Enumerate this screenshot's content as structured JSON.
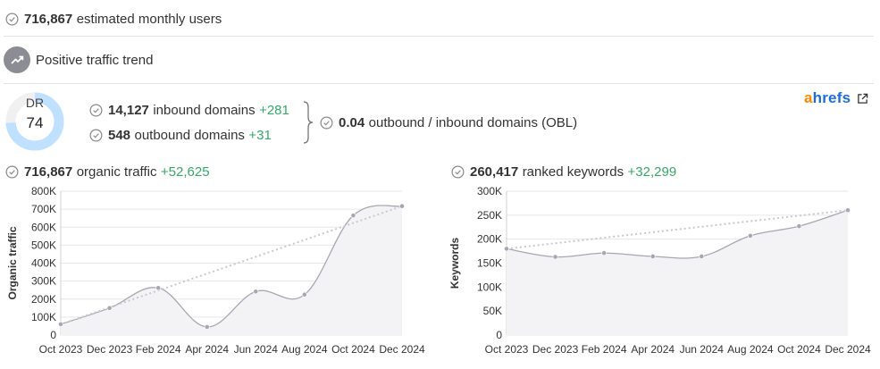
{
  "users": {
    "value": "716,867",
    "label": "estimated monthly users"
  },
  "trend": {
    "label": "Positive traffic trend"
  },
  "dr": {
    "label": "DR",
    "value": "74",
    "fraction": 0.74
  },
  "domains": {
    "inbound": {
      "value": "14,127",
      "label": "inbound domains",
      "delta": "+281"
    },
    "outbound": {
      "value": "548",
      "label": "outbound domains",
      "delta": "+31"
    },
    "obl": {
      "value": "0.04",
      "label": "outbound / inbound domains (OBL)"
    }
  },
  "brand": {
    "a": "a",
    "rest": "hrefs"
  },
  "organic": {
    "value": "716,867",
    "label": "organic traffic",
    "delta": "+52,625"
  },
  "keywords": {
    "value": "260,417",
    "label": "ranked keywords",
    "delta": "+32,299"
  },
  "colors": {
    "line": "#a7a7b2",
    "fill": "#f3f3f6",
    "trend": "#c9c9cf",
    "green": "#36a86a",
    "dr_ring": "#bfe0ff",
    "dr_ring_bg": "#f0f0f0"
  },
  "chart_data": [
    {
      "type": "area",
      "ylabel": "Organic traffic",
      "ylim": [
        0,
        800000
      ],
      "yticks": [
        "0",
        "100K",
        "200K",
        "300K",
        "400K",
        "500K",
        "600K",
        "700K",
        "800K"
      ],
      "xticks": [
        "Oct 2023",
        "Dec 2023",
        "Feb 2024",
        "Apr 2024",
        "Jun 2024",
        "Aug 2024",
        "Oct 2024",
        "Dec 2024"
      ],
      "points": [
        60000,
        150000,
        262000,
        45000,
        242000,
        225000,
        665000,
        716867
      ],
      "trendline": [
        60000,
        716867
      ],
      "grid": true
    },
    {
      "type": "area",
      "ylabel": "Keywords",
      "ylim": [
        0,
        300000
      ],
      "yticks": [
        "0",
        "50K",
        "100K",
        "150K",
        "200K",
        "250K",
        "300K"
      ],
      "xticks": [
        "Oct 2023",
        "Dec 2023",
        "Feb 2024",
        "Apr 2024",
        "Jun 2024",
        "Aug 2024",
        "Oct 2024",
        "Dec 2024"
      ],
      "points": [
        180000,
        163000,
        171000,
        164000,
        164000,
        207000,
        227000,
        260417
      ],
      "trendline": [
        180000,
        260417
      ],
      "grid": true
    }
  ]
}
